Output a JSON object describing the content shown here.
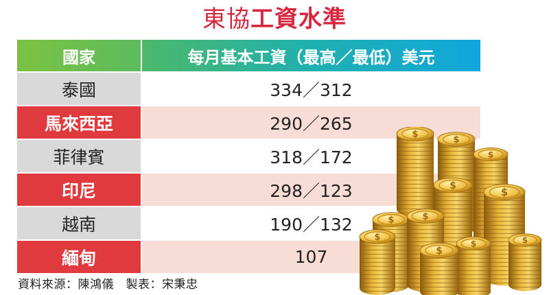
{
  "title": {
    "part1": "東協",
    "part2": "工資水準"
  },
  "table": {
    "headers": [
      "國家",
      "每月基本工資（最高／最低）美元"
    ],
    "rows": [
      {
        "country": "泰國",
        "wage": "334／312",
        "style": "grey"
      },
      {
        "country": "馬來西亞",
        "wage": "290／265",
        "style": "red"
      },
      {
        "country": "菲律賓",
        "wage": "318／172",
        "style": "grey"
      },
      {
        "country": "印尼",
        "wage": "298／123",
        "style": "red"
      },
      {
        "country": "越南",
        "wage": "190／132",
        "style": "grey"
      },
      {
        "country": "緬甸",
        "wage": "107",
        "style": "red"
      }
    ]
  },
  "source": "資料來源：陳鴻儀　製表：宋秉忠",
  "colors": {
    "title": "#d7263d",
    "accent_red": "#e03a3e",
    "grey_cell": "#d9d9d9",
    "pink_cell": "#f8ddd6",
    "header_green": "#7cc242",
    "header_blue": "#12a8d8"
  }
}
